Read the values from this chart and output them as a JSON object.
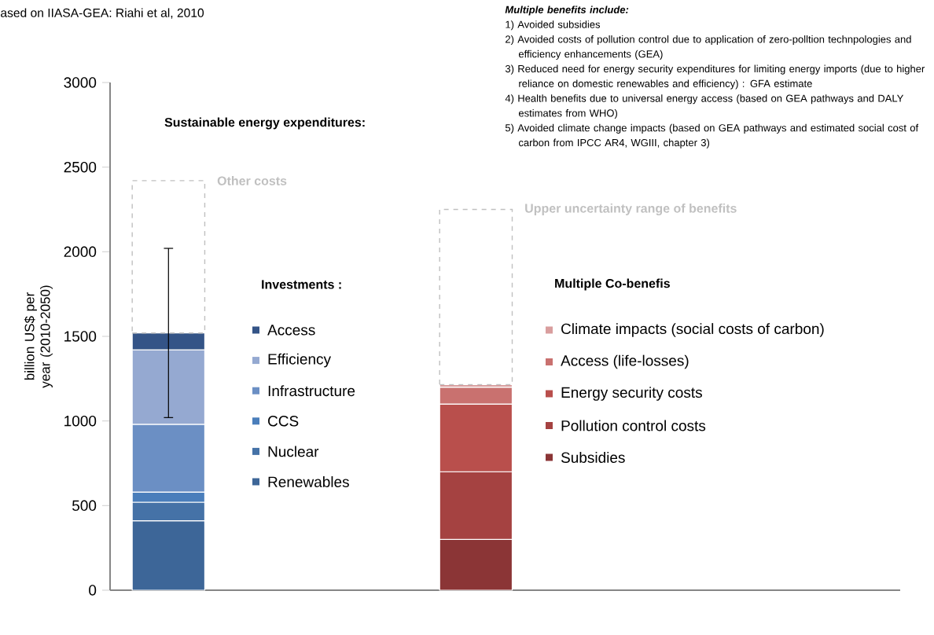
{
  "chart_data": {
    "type": "bar",
    "stacked": true,
    "title": "Sustainable energy expenditures:",
    "ylabel": "billion US$ per year (2010-2050)",
    "categories": [
      null,
      null
    ],
    "series": [
      {
        "name": "Renewables",
        "color": "#3d6698",
        "values": [
          410,
          null
        ]
      },
      {
        "name": "Nuclear",
        "color": "#4572a7",
        "values": [
          110,
          null
        ]
      },
      {
        "name": "CCS",
        "color": "#4a7ebb",
        "values": [
          60,
          null
        ]
      },
      {
        "name": "Infrastructure",
        "color": "#6b8fc4",
        "values": [
          400,
          null
        ]
      },
      {
        "name": "Efficiency",
        "color": "#95a9d1",
        "values": [
          440,
          null
        ]
      },
      {
        "name": "Access",
        "color": "#345487",
        "values": [
          100,
          null
        ],
        "errors": [
          500,
          null
        ]
      },
      {
        "name": "Other costs",
        "color": "#c0c0c0",
        "line_style": "dashed",
        "values": [
          900,
          null
        ]
      },
      {
        "name": "Subsidies",
        "color": "#8b3536",
        "values": [
          null,
          300
        ]
      },
      {
        "name": "Pollution control costs",
        "color": "#a54241",
        "values": [
          null,
          400
        ]
      },
      {
        "name": "Energy security costs",
        "color": "#b94f4c",
        "values": [
          null,
          400
        ]
      },
      {
        "name": "Access (life-losses)",
        "color": "#c9716f",
        "values": [
          null,
          100
        ]
      },
      {
        "name": "Climate impacts (social costs of carbon)",
        "color": "#d99e9e",
        "values": [
          null,
          15
        ]
      },
      {
        "name": "Upper uncertainty  range of benefits",
        "color": "#c0c0c0",
        "line_style": "dashed",
        "values": [
          null,
          1035
        ]
      }
    ],
    "ylim": [
      0,
      3000
    ],
    "yticks": [
      0,
      500,
      1000,
      1500,
      2000,
      2500,
      3000
    ],
    "legend": "right",
    "annotations": [
      "ased on IIASA-GEA: Riahi et al, 2010",
      "Multiple benefits include:",
      "1) Avoided subsidies",
      "2) Avoided costs of pollution control due to application of zero-polltion technpologies and efficiency enhancements (GEA)",
      "3) Reduced need for energy security expenditures for limiting energy imports (due to higher reliance on domestic renewables and efficiency) : GFA estimate",
      "4) Health benefits due to universal energy access (based on GEA pathways and DALY estimates from WHO)",
      "5) Avoided climate change impacts (based on GEA pathways and estimated social cost of carbon from IPCC AR4, WGIII, chapter 3)",
      "Investments :",
      "Multiple Co-benefis"
    ]
  }
}
